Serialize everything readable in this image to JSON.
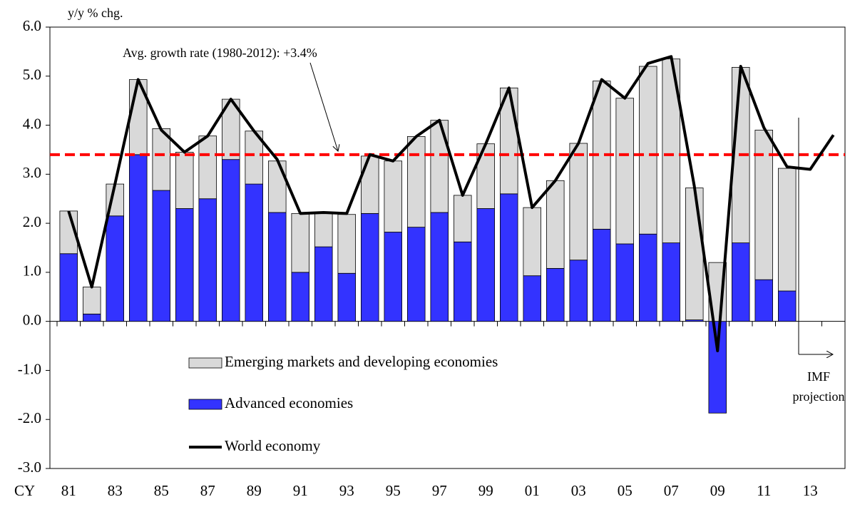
{
  "chart_data": {
    "type": "bar",
    "y_label": "y/y % chg.",
    "x_label": "CY",
    "categories": [
      "81",
      null,
      "83",
      null,
      "85",
      null,
      "87",
      null,
      "89",
      null,
      "91",
      null,
      "93",
      null,
      "95",
      null,
      "97",
      null,
      "99",
      null,
      "01",
      null,
      "03",
      null,
      "05",
      null,
      "07",
      null,
      "09",
      null,
      "11",
      null,
      "13",
      null
    ],
    "series": [
      {
        "name": "Emerging markets and developing economies",
        "color": "#d9d9d9",
        "kind": "bar",
        "values": [
          0.87,
          0.55,
          0.65,
          1.53,
          1.26,
          1.15,
          1.28,
          1.23,
          1.08,
          1.05,
          1.2,
          0.7,
          1.2,
          1.17,
          1.45,
          1.85,
          1.88,
          0.95,
          1.32,
          2.16,
          1.39,
          1.79,
          2.38,
          3.02,
          2.97,
          3.42,
          3.75,
          2.69,
          1.2,
          3.58,
          3.05,
          2.5,
          null,
          null
        ]
      },
      {
        "name": "Advanced economies",
        "color": "#3333ff",
        "kind": "bar",
        "values": [
          1.38,
          0.15,
          2.15,
          3.4,
          2.67,
          2.3,
          2.5,
          3.3,
          2.8,
          2.22,
          1.0,
          1.52,
          0.98,
          2.2,
          1.82,
          1.92,
          2.22,
          1.62,
          2.3,
          2.6,
          0.93,
          1.08,
          1.25,
          1.88,
          1.58,
          1.78,
          1.6,
          0.03,
          -1.87,
          1.6,
          0.85,
          0.62,
          null,
          null
        ]
      },
      {
        "name": "World economy",
        "color": "#000000",
        "kind": "line",
        "values": [
          2.25,
          0.7,
          2.8,
          4.93,
          3.9,
          3.45,
          3.78,
          4.53,
          3.88,
          3.3,
          2.2,
          2.22,
          2.2,
          3.4,
          3.27,
          3.77,
          4.1,
          2.57,
          3.62,
          4.76,
          2.32,
          2.87,
          3.63,
          4.93,
          4.55,
          5.26,
          5.4,
          2.75,
          -0.6,
          5.2,
          3.95,
          3.15,
          3.1,
          3.8
        ]
      }
    ],
    "average": {
      "value": 3.4,
      "color": "#ff0000",
      "label": "Avg. growth rate (1980-2012): +3.4%"
    },
    "projection_label": [
      "IMF",
      "projection"
    ],
    "ylim": [
      -3,
      6
    ],
    "yticks": [
      {
        "value": -3,
        "label": "-3.0"
      },
      {
        "value": -2,
        "label": "-2.0"
      },
      {
        "value": -1,
        "label": "-1.0"
      },
      {
        "value": 0,
        "label": "0.0"
      },
      {
        "value": 1,
        "label": "1.0"
      },
      {
        "value": 2,
        "label": "2.0"
      },
      {
        "value": 3,
        "label": "3.0"
      },
      {
        "value": 4,
        "label": "4.0"
      },
      {
        "value": 5,
        "label": "5.0"
      },
      {
        "value": 6,
        "label": "6.0"
      }
    ]
  }
}
